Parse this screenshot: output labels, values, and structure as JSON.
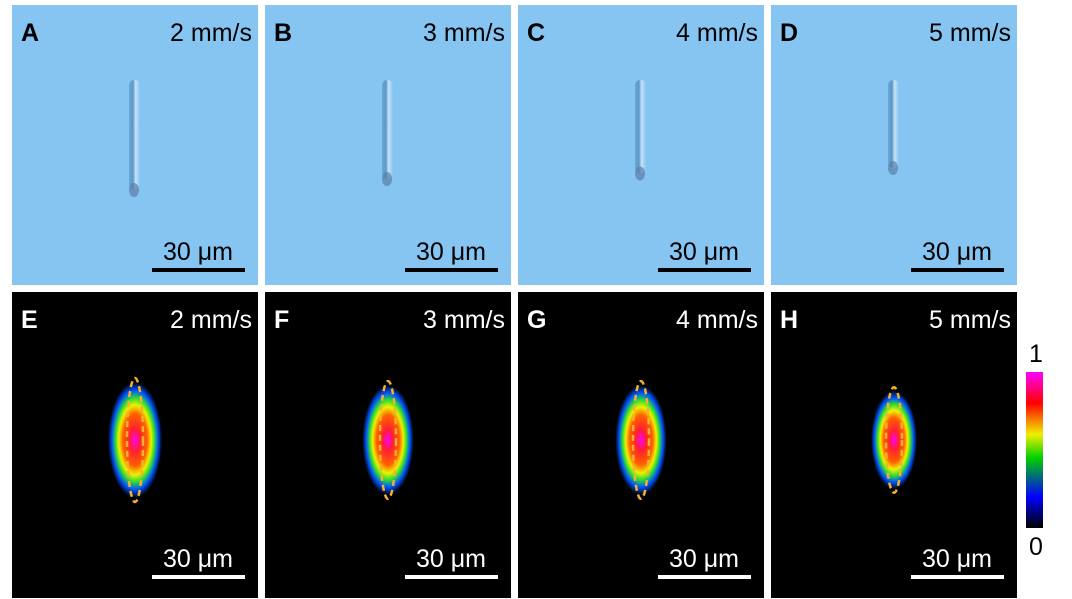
{
  "top_row": [
    {
      "letter": "A",
      "speed": "2 mm/s",
      "scale_bar": "30 μm"
    },
    {
      "letter": "B",
      "speed": "3 mm/s",
      "scale_bar": "30 μm"
    },
    {
      "letter": "C",
      "speed": "4 mm/s",
      "scale_bar": "30 μm"
    },
    {
      "letter": "D",
      "speed": "5 mm/s",
      "scale_bar": "30 μm"
    }
  ],
  "bottom_row": [
    {
      "letter": "E",
      "speed": "2 mm/s",
      "scale_bar": "30 μm"
    },
    {
      "letter": "F",
      "speed": "3 mm/s",
      "scale_bar": "30 μm"
    },
    {
      "letter": "G",
      "speed": "4 mm/s",
      "scale_bar": "30 μm"
    },
    {
      "letter": "H",
      "speed": "5 mm/s",
      "scale_bar": "30 μm"
    }
  ],
  "colorbar": {
    "max_label": "1",
    "min_label": "0"
  }
}
